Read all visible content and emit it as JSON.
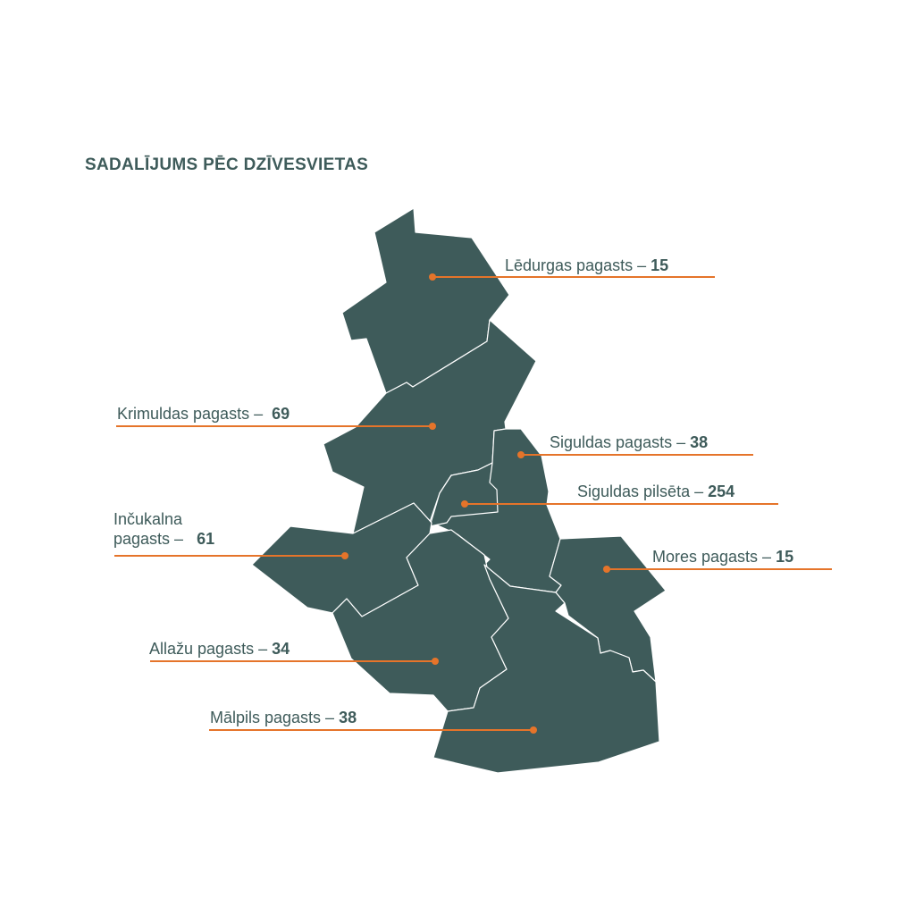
{
  "title": "SADALĪJUMS PĒC DZĪVESVIETAS",
  "colors": {
    "region_fill": "#3e5b5a",
    "accent": "#e5742a",
    "background": "#ffffff"
  },
  "regions": [
    {
      "name_line1": "Lēdurgas pagasts –",
      "name_line2": "",
      "value": "15"
    },
    {
      "name_line1": "Krimuldas pagasts –",
      "name_line2": "",
      "value": "69"
    },
    {
      "name_line1": "Siguldas pagasts –",
      "name_line2": "",
      "value": "38"
    },
    {
      "name_line1": "Siguldas pilsēta –",
      "name_line2": "",
      "value": "254"
    },
    {
      "name_line1": "Inčukalna",
      "name_line2": "pagasts –",
      "value": "61"
    },
    {
      "name_line1": "Mores pagasts –",
      "name_line2": "",
      "value": "15"
    },
    {
      "name_line1": "Allažu pagasts –",
      "name_line2": "",
      "value": "34"
    },
    {
      "name_line1": "Mālpils pagasts –",
      "name_line2": "",
      "value": "38"
    }
  ]
}
